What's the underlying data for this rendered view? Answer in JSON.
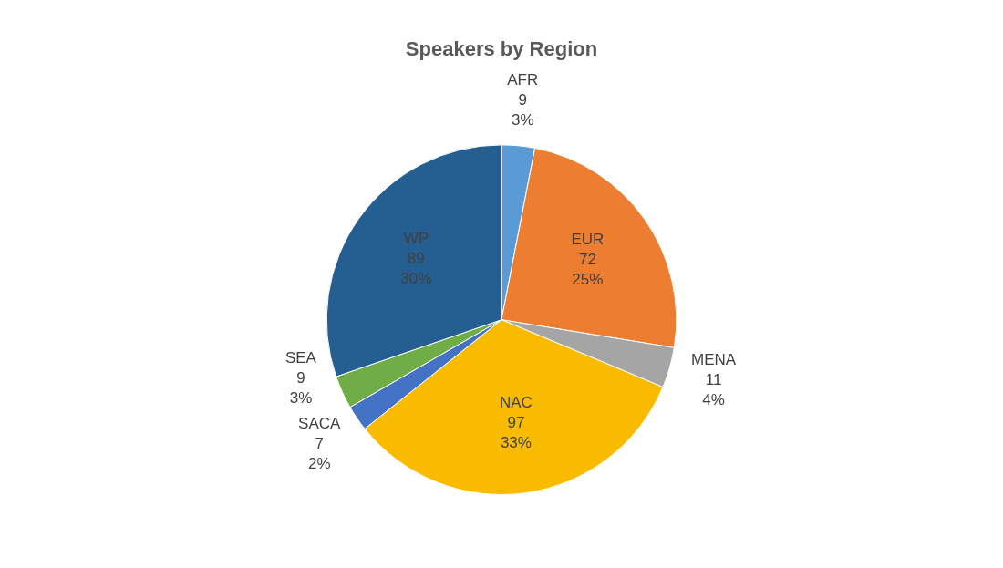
{
  "chart_data": {
    "type": "pie",
    "title": "Speakers by Region",
    "categories": [
      "AFR",
      "EUR",
      "MENA",
      "NAC",
      "SACA",
      "SEA",
      "WP"
    ],
    "values": [
      9,
      72,
      11,
      97,
      7,
      9,
      89
    ],
    "value_labels": [
      "9\n3%",
      "72\n25%",
      "11\n4%",
      "97\n33%",
      "7\n2%",
      "9\n3%",
      "89\n30%"
    ],
    "colors": [
      "#5b9bd5",
      "#ed7d31",
      "#a5a5a5",
      "#f9bb00",
      "#4472c4",
      "#70ad47",
      "#255e91"
    ],
    "legend": false
  }
}
